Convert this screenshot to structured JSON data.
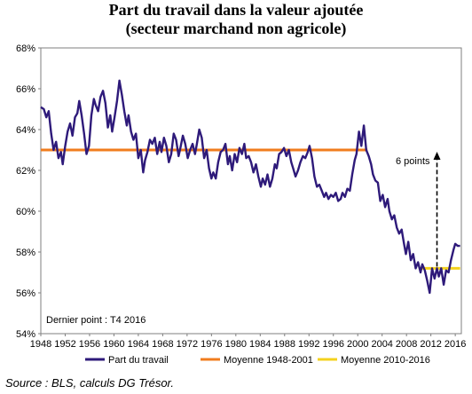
{
  "chart_data": {
    "type": "line",
    "title_line1": "Part du travail dans la valeur ajoutée",
    "title_line2": "(secteur marchand non agricole)",
    "xlabel": "",
    "ylabel": "",
    "xlim": [
      1948,
      2017
    ],
    "ylim": [
      54,
      68
    ],
    "x_ticks": [
      "1948",
      "1952",
      "1956",
      "1960",
      "1964",
      "1968",
      "1972",
      "1976",
      "1980",
      "1984",
      "1988",
      "1992",
      "1996",
      "2000",
      "2004",
      "2008",
      "2012",
      "2016"
    ],
    "y_ticks": [
      "54%",
      "56%",
      "58%",
      "60%",
      "62%",
      "64%",
      "66%",
      "68%"
    ],
    "grid": false,
    "legend_position": "bottom",
    "series": [
      {
        "name": "Part du travail",
        "color": "#2e1a7a",
        "points": [
          [
            1948.0,
            65.1
          ],
          [
            1948.5,
            65.0
          ],
          [
            1948.9,
            64.6
          ],
          [
            1949.3,
            64.9
          ],
          [
            1949.7,
            63.8
          ],
          [
            1950.1,
            63.0
          ],
          [
            1950.5,
            63.4
          ],
          [
            1950.9,
            62.6
          ],
          [
            1951.3,
            62.9
          ],
          [
            1951.6,
            62.3
          ],
          [
            1952.0,
            63.2
          ],
          [
            1952.4,
            63.9
          ],
          [
            1952.8,
            64.3
          ],
          [
            1953.2,
            63.7
          ],
          [
            1953.6,
            64.6
          ],
          [
            1954.0,
            64.8
          ],
          [
            1954.3,
            65.4
          ],
          [
            1954.7,
            64.7
          ],
          [
            1955.1,
            63.8
          ],
          [
            1955.5,
            62.8
          ],
          [
            1955.9,
            63.2
          ],
          [
            1956.3,
            64.7
          ],
          [
            1956.7,
            65.5
          ],
          [
            1957.0,
            65.2
          ],
          [
            1957.4,
            64.9
          ],
          [
            1957.8,
            65.6
          ],
          [
            1958.2,
            65.9
          ],
          [
            1958.6,
            65.3
          ],
          [
            1959.0,
            64.1
          ],
          [
            1959.4,
            64.7
          ],
          [
            1959.7,
            63.9
          ],
          [
            1960.1,
            64.6
          ],
          [
            1960.5,
            65.4
          ],
          [
            1960.9,
            66.4
          ],
          [
            1961.3,
            65.7
          ],
          [
            1961.7,
            64.9
          ],
          [
            1962.1,
            64.2
          ],
          [
            1962.4,
            64.7
          ],
          [
            1962.8,
            63.9
          ],
          [
            1963.2,
            63.5
          ],
          [
            1963.6,
            63.8
          ],
          [
            1964.0,
            62.6
          ],
          [
            1964.4,
            63.0
          ],
          [
            1964.8,
            61.9
          ],
          [
            1965.1,
            62.5
          ],
          [
            1965.5,
            62.9
          ],
          [
            1965.9,
            63.5
          ],
          [
            1966.3,
            63.3
          ],
          [
            1966.7,
            63.6
          ],
          [
            1967.1,
            62.8
          ],
          [
            1967.5,
            63.4
          ],
          [
            1967.8,
            62.9
          ],
          [
            1968.2,
            63.6
          ],
          [
            1968.6,
            63.2
          ],
          [
            1969.0,
            62.4
          ],
          [
            1969.4,
            62.8
          ],
          [
            1969.8,
            63.8
          ],
          [
            1970.2,
            63.5
          ],
          [
            1970.6,
            62.7
          ],
          [
            1970.9,
            63.1
          ],
          [
            1971.3,
            63.7
          ],
          [
            1971.7,
            63.3
          ],
          [
            1972.1,
            62.6
          ],
          [
            1972.5,
            63.0
          ],
          [
            1972.9,
            63.3
          ],
          [
            1973.3,
            62.8
          ],
          [
            1973.6,
            63.3
          ],
          [
            1974.0,
            64.0
          ],
          [
            1974.4,
            63.6
          ],
          [
            1974.8,
            62.6
          ],
          [
            1975.2,
            63.0
          ],
          [
            1975.6,
            62.1
          ],
          [
            1976.0,
            61.6
          ],
          [
            1976.3,
            61.9
          ],
          [
            1976.7,
            61.6
          ],
          [
            1977.1,
            62.4
          ],
          [
            1977.5,
            62.9
          ],
          [
            1977.9,
            63.0
          ],
          [
            1978.3,
            63.3
          ],
          [
            1978.7,
            62.3
          ],
          [
            1979.0,
            62.7
          ],
          [
            1979.4,
            62.0
          ],
          [
            1979.8,
            62.8
          ],
          [
            1980.2,
            62.4
          ],
          [
            1980.6,
            63.1
          ],
          [
            1981.0,
            62.8
          ],
          [
            1981.4,
            63.3
          ],
          [
            1981.7,
            62.6
          ],
          [
            1982.1,
            62.7
          ],
          [
            1982.5,
            62.4
          ],
          [
            1982.9,
            61.9
          ],
          [
            1983.3,
            62.3
          ],
          [
            1983.7,
            61.7
          ],
          [
            1984.1,
            61.2
          ],
          [
            1984.4,
            61.6
          ],
          [
            1984.8,
            61.3
          ],
          [
            1985.2,
            61.8
          ],
          [
            1985.6,
            61.2
          ],
          [
            1986.0,
            61.6
          ],
          [
            1986.4,
            62.3
          ],
          [
            1986.7,
            62.1
          ],
          [
            1987.1,
            62.8
          ],
          [
            1987.5,
            62.9
          ],
          [
            1987.9,
            63.1
          ],
          [
            1988.3,
            62.7
          ],
          [
            1988.7,
            63.0
          ],
          [
            1989.1,
            62.4
          ],
          [
            1989.4,
            62.1
          ],
          [
            1989.8,
            61.7
          ],
          [
            1990.2,
            62.0
          ],
          [
            1990.6,
            62.4
          ],
          [
            1991.0,
            62.7
          ],
          [
            1991.4,
            62.6
          ],
          [
            1991.8,
            62.9
          ],
          [
            1992.1,
            63.2
          ],
          [
            1992.5,
            62.6
          ],
          [
            1992.9,
            61.7
          ],
          [
            1993.3,
            61.2
          ],
          [
            1993.7,
            61.3
          ],
          [
            1994.1,
            61.0
          ],
          [
            1994.5,
            60.7
          ],
          [
            1994.8,
            60.9
          ],
          [
            1995.2,
            60.6
          ],
          [
            1995.6,
            60.8
          ],
          [
            1996.0,
            60.7
          ],
          [
            1996.4,
            60.9
          ],
          [
            1996.8,
            60.5
          ],
          [
            1997.2,
            60.6
          ],
          [
            1997.5,
            60.9
          ],
          [
            1997.9,
            60.7
          ],
          [
            1998.3,
            61.1
          ],
          [
            1998.7,
            61.0
          ],
          [
            1999.1,
            61.8
          ],
          [
            1999.5,
            62.5
          ],
          [
            1999.8,
            62.8
          ],
          [
            2000.2,
            63.9
          ],
          [
            2000.6,
            63.2
          ],
          [
            2001.0,
            64.2
          ],
          [
            2001.4,
            63.0
          ],
          [
            2001.8,
            62.7
          ],
          [
            2002.2,
            62.3
          ],
          [
            2002.5,
            61.8
          ],
          [
            2002.9,
            61.5
          ],
          [
            2003.3,
            61.4
          ],
          [
            2003.7,
            60.5
          ],
          [
            2004.1,
            60.8
          ],
          [
            2004.5,
            60.2
          ],
          [
            2004.9,
            60.6
          ],
          [
            2005.2,
            60.0
          ],
          [
            2005.6,
            59.6
          ],
          [
            2006.0,
            59.8
          ],
          [
            2006.4,
            59.2
          ],
          [
            2006.8,
            58.9
          ],
          [
            2007.2,
            59.1
          ],
          [
            2007.6,
            58.4
          ],
          [
            2007.9,
            57.9
          ],
          [
            2008.3,
            58.5
          ],
          [
            2008.7,
            57.6
          ],
          [
            2009.1,
            57.9
          ],
          [
            2009.5,
            57.2
          ],
          [
            2009.9,
            57.5
          ],
          [
            2010.3,
            57.0
          ],
          [
            2010.6,
            57.4
          ],
          [
            2011.0,
            57.1
          ],
          [
            2011.4,
            56.6
          ],
          [
            2011.8,
            56.0
          ],
          [
            2012.2,
            57.2
          ],
          [
            2012.6,
            56.7
          ],
          [
            2013.0,
            57.2
          ],
          [
            2013.3,
            56.8
          ],
          [
            2013.7,
            57.2
          ],
          [
            2014.1,
            56.4
          ],
          [
            2014.5,
            57.1
          ],
          [
            2014.9,
            57.0
          ],
          [
            2015.3,
            57.6
          ],
          [
            2015.7,
            58.1
          ],
          [
            2016.0,
            58.4
          ],
          [
            2016.4,
            58.3
          ],
          [
            2016.8,
            58.3
          ]
        ]
      },
      {
        "name": "Moyenne 1948-2001",
        "color": "#f07c1e",
        "x": [
          1948,
          2001.6
        ],
        "values": [
          63.0,
          63.0
        ]
      },
      {
        "name": "Moyenne 2010-2016",
        "color": "#f4d21e",
        "x": [
          2010,
          2016.8
        ],
        "values": [
          57.2,
          57.2
        ]
      }
    ],
    "annotations": [
      {
        "text": "6 points",
        "type": "dashed-arrow",
        "x": 2013.0,
        "y_from": 57.2,
        "y_to": 63.0
      },
      {
        "text": "Dernier point : T4 2016"
      }
    ]
  },
  "footer": {
    "source": "Source : BLS, calculs DG Trésor."
  }
}
